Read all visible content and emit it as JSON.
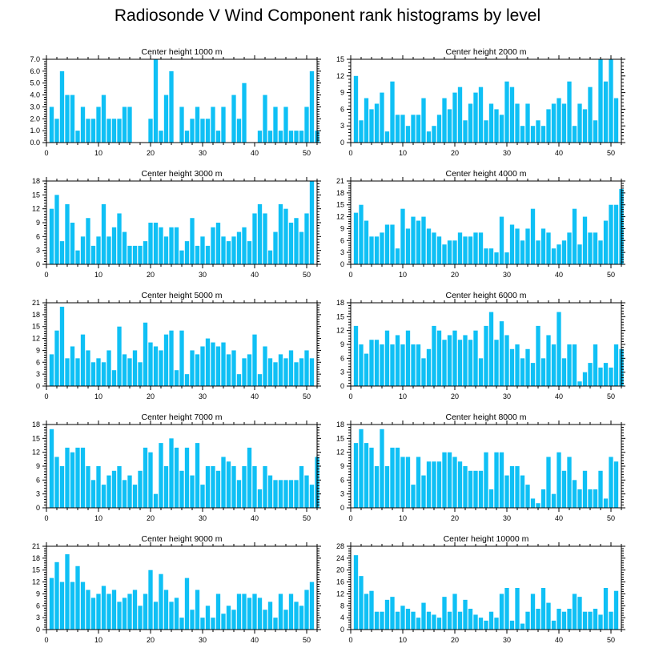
{
  "title": "Radiosonde V Wind Component rank histograms by level",
  "chart_data": [
    {
      "type": "bar",
      "title": "Center height 1000 m",
      "xlim": [
        0,
        52
      ],
      "xticks": [
        0,
        10,
        20,
        30,
        40,
        50
      ],
      "ylim": [
        0,
        7
      ],
      "yticks": [
        "0.0",
        "1.0",
        "2.0",
        "3.0",
        "4.0",
        "5.0",
        "6.0",
        "7.0"
      ],
      "values": [
        3,
        2,
        6,
        4,
        4,
        1,
        3,
        2,
        2,
        3,
        4,
        2,
        2,
        2,
        3,
        3,
        0,
        0,
        0,
        2,
        7,
        1,
        4,
        6,
        0,
        3,
        1,
        2,
        3,
        2,
        2,
        3,
        1,
        3,
        0,
        4,
        2,
        5,
        0,
        0,
        1,
        4,
        1,
        3,
        1,
        3,
        1,
        1,
        1,
        3,
        6,
        1
      ]
    },
    {
      "type": "bar",
      "title": "Center height 2000 m",
      "xlim": [
        0,
        52
      ],
      "xticks": [
        0,
        10,
        20,
        30,
        40,
        50
      ],
      "ylim": [
        0,
        15
      ],
      "yticks": [
        "0",
        "3",
        "6",
        "9",
        "12",
        "15"
      ],
      "values": [
        12,
        4,
        8,
        6,
        7,
        9,
        2,
        11,
        5,
        5,
        3,
        5,
        5,
        8,
        2,
        3,
        5,
        8,
        6,
        9,
        10,
        4,
        7,
        9,
        10,
        4,
        7,
        6,
        5,
        11,
        10,
        7,
        3,
        7,
        3,
        4,
        3,
        6,
        7,
        8,
        7,
        11,
        3,
        7,
        6,
        10,
        4,
        15,
        11,
        15,
        8
      ]
    },
    {
      "type": "bar",
      "title": "Center height 3000 m",
      "xlim": [
        0,
        52
      ],
      "xticks": [
        0,
        10,
        20,
        30,
        40,
        50
      ],
      "ylim": [
        0,
        18
      ],
      "yticks": [
        "0",
        "3",
        "6",
        "9",
        "12",
        "15",
        "18"
      ],
      "values": [
        12,
        15,
        5,
        13,
        9,
        3,
        6,
        10,
        4,
        6,
        13,
        6,
        8,
        11,
        7,
        4,
        4,
        4,
        5,
        9,
        9,
        8,
        6,
        8,
        8,
        3,
        5,
        10,
        4,
        6,
        4,
        8,
        9,
        6,
        5,
        6,
        7,
        8,
        5,
        11,
        13,
        11,
        3,
        7,
        13,
        12,
        9,
        10,
        7,
        11,
        18
      ]
    },
    {
      "type": "bar",
      "title": "Center height 4000 m",
      "xlim": [
        0,
        52
      ],
      "xticks": [
        0,
        10,
        20,
        30,
        40,
        50
      ],
      "ylim": [
        0,
        21
      ],
      "yticks": [
        "0",
        "3",
        "6",
        "9",
        "12",
        "15",
        "18",
        "21"
      ],
      "values": [
        13,
        15,
        11,
        7,
        7,
        8,
        10,
        10,
        4,
        14,
        9,
        12,
        11,
        12,
        9,
        8,
        7,
        5,
        6,
        6,
        8,
        7,
        7,
        8,
        8,
        4,
        4,
        3,
        12,
        3,
        10,
        9,
        6,
        9,
        14,
        6,
        9,
        8,
        4,
        5,
        6,
        8,
        14,
        5,
        12,
        8,
        8,
        6,
        11,
        15,
        15,
        19
      ]
    },
    {
      "type": "bar",
      "title": "Center height 5000 m",
      "xlim": [
        0,
        52
      ],
      "xticks": [
        0,
        10,
        20,
        30,
        40,
        50
      ],
      "ylim": [
        0,
        21
      ],
      "yticks": [
        "0",
        "3",
        "6",
        "9",
        "12",
        "15",
        "18",
        "21"
      ],
      "values": [
        8,
        14,
        20,
        7,
        10,
        7,
        13,
        9,
        6,
        7,
        6,
        9,
        4,
        15,
        8,
        7,
        9,
        6,
        16,
        11,
        10,
        9,
        13,
        14,
        4,
        14,
        3,
        9,
        8,
        10,
        12,
        11,
        10,
        11,
        8,
        9,
        3,
        7,
        8,
        13,
        3,
        10,
        7,
        6,
        8,
        7,
        9,
        6,
        7,
        9,
        7
      ]
    },
    {
      "type": "bar",
      "title": "Center height 6000 m",
      "xlim": [
        0,
        52
      ],
      "xticks": [
        0,
        10,
        20,
        30,
        40,
        50
      ],
      "ylim": [
        0,
        18
      ],
      "yticks": [
        "0",
        "3",
        "6",
        "9",
        "12",
        "15",
        "18"
      ],
      "values": [
        13,
        9,
        7,
        10,
        10,
        9,
        12,
        9,
        11,
        9,
        12,
        9,
        9,
        6,
        8,
        13,
        12,
        10,
        11,
        12,
        10,
        11,
        10,
        12,
        6,
        13,
        16,
        10,
        14,
        11,
        8,
        9,
        6,
        8,
        5,
        13,
        6,
        11,
        9,
        16,
        6,
        9,
        9,
        1,
        3,
        5,
        9,
        4,
        5,
        4,
        9,
        8
      ]
    },
    {
      "type": "bar",
      "title": "Center height 7000 m",
      "xlim": [
        0,
        52
      ],
      "xticks": [
        0,
        10,
        20,
        30,
        40,
        50
      ],
      "ylim": [
        0,
        18
      ],
      "yticks": [
        "0",
        "3",
        "6",
        "9",
        "12",
        "15",
        "18"
      ],
      "values": [
        17,
        11,
        9,
        13,
        12,
        13,
        13,
        9,
        6,
        9,
        5,
        7,
        8,
        9,
        6,
        7,
        5,
        8,
        13,
        12,
        3,
        14,
        9,
        15,
        13,
        8,
        13,
        7,
        14,
        5,
        9,
        9,
        8,
        11,
        10,
        9,
        6,
        9,
        13,
        9,
        4,
        9,
        7,
        6,
        6,
        6,
        6,
        6,
        9,
        7,
        5,
        11
      ]
    },
    {
      "type": "bar",
      "title": "Center height 8000 m",
      "xlim": [
        0,
        52
      ],
      "xticks": [
        0,
        10,
        20,
        30,
        40,
        50
      ],
      "ylim": [
        0,
        18
      ],
      "yticks": [
        "0",
        "3",
        "6",
        "9",
        "12",
        "15",
        "18"
      ],
      "values": [
        14,
        17,
        14,
        13,
        9,
        17,
        9,
        13,
        13,
        11,
        11,
        5,
        11,
        7,
        10,
        10,
        10,
        12,
        12,
        11,
        10,
        9,
        8,
        8,
        8,
        12,
        4,
        12,
        12,
        7,
        9,
        9,
        7,
        5,
        2,
        1,
        4,
        11,
        3,
        12,
        8,
        11,
        6,
        4,
        8,
        4,
        4,
        8,
        2,
        11,
        10
      ]
    },
    {
      "type": "bar",
      "title": "Center height 9000 m",
      "xlim": [
        0,
        52
      ],
      "xticks": [
        0,
        10,
        20,
        30,
        40,
        50
      ],
      "ylim": [
        0,
        21
      ],
      "yticks": [
        "0",
        "3",
        "6",
        "9",
        "12",
        "15",
        "18",
        "21"
      ],
      "values": [
        13,
        17,
        12,
        19,
        12,
        16,
        12,
        10,
        8,
        9,
        11,
        9,
        10,
        7,
        8,
        9,
        10,
        6,
        9,
        15,
        7,
        14,
        10,
        7,
        8,
        3,
        13,
        5,
        10,
        3,
        6,
        3,
        9,
        4,
        6,
        5,
        9,
        9,
        8,
        9,
        8,
        5,
        7,
        3,
        9,
        5,
        9,
        7,
        6,
        10,
        12
      ]
    },
    {
      "type": "bar",
      "title": "Center height 10000 m",
      "xlim": [
        0,
        52
      ],
      "xticks": [
        0,
        10,
        20,
        30,
        40,
        50
      ],
      "ylim": [
        0,
        28
      ],
      "yticks": [
        "0",
        "4",
        "8",
        "12",
        "16",
        "20",
        "24",
        "28"
      ],
      "values": [
        25,
        18,
        12,
        13,
        6,
        6,
        10,
        11,
        6,
        8,
        7,
        6,
        4,
        9,
        6,
        5,
        4,
        11,
        6,
        12,
        6,
        10,
        7,
        5,
        4,
        3,
        6,
        4,
        12,
        14,
        3,
        14,
        2,
        6,
        12,
        7,
        14,
        9,
        3,
        7,
        6,
        7,
        12,
        11,
        6,
        6,
        7,
        5,
        14,
        6,
        13
      ]
    }
  ]
}
